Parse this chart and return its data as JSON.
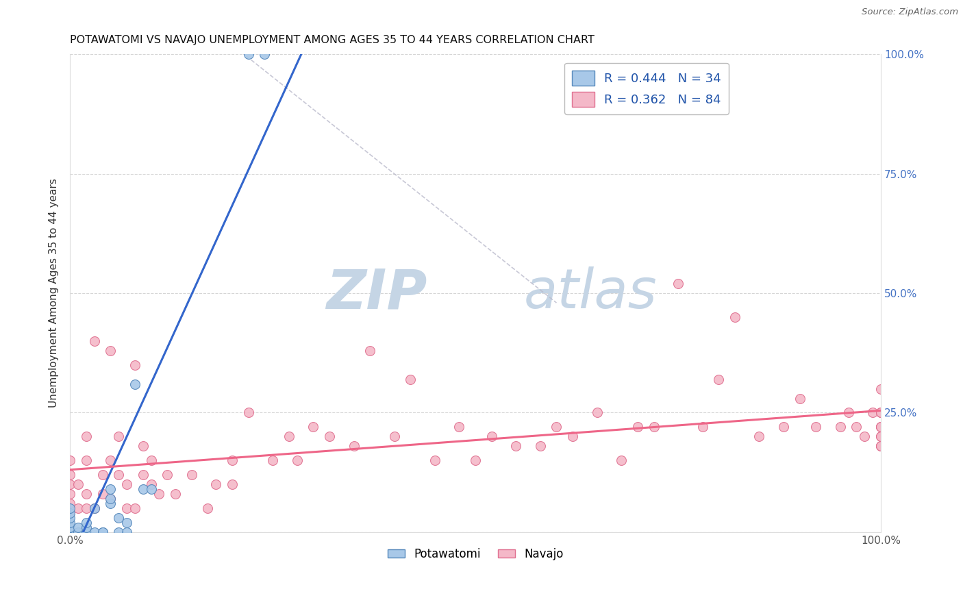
{
  "title": "POTAWATOMI VS NAVAJO UNEMPLOYMENT AMONG AGES 35 TO 44 YEARS CORRELATION CHART",
  "source": "Source: ZipAtlas.com",
  "ylabel": "Unemployment Among Ages 35 to 44 years",
  "xlim": [
    0,
    1.0
  ],
  "ylim": [
    0,
    1.0
  ],
  "xticks": [
    0.0,
    0.25,
    0.5,
    0.75,
    1.0
  ],
  "xticklabels": [
    "0.0%",
    "",
    "",
    "",
    "100.0%"
  ],
  "yticks_right": [
    0.0,
    0.25,
    0.5,
    0.75,
    1.0
  ],
  "yticklabels_right": [
    "",
    "25.0%",
    "50.0%",
    "75.0%",
    "100.0%"
  ],
  "potawatomi_color": "#a8c8e8",
  "navajo_color": "#f4b8c8",
  "potawatomi_edge": "#5588bb",
  "navajo_edge": "#e07090",
  "blue_line_color": "#3366cc",
  "pink_line_color": "#ee6688",
  "dashed_line_color": "#bbbbcc",
  "R_potawatomi": 0.444,
  "N_potawatomi": 34,
  "R_navajo": 0.362,
  "N_navajo": 84,
  "legend_label_potawatomi": "Potawatomi",
  "legend_label_navajo": "Navajo",
  "watermark_zip": "ZIP",
  "watermark_atlas": "atlas",
  "watermark_color_zip": "#c5d5e5",
  "watermark_color_atlas": "#c5d5e5",
  "potawatomi_x": [
    0.0,
    0.0,
    0.0,
    0.0,
    0.0,
    0.0,
    0.0,
    0.0,
    0.0,
    0.0,
    0.0,
    0.0,
    0.0,
    0.01,
    0.01,
    0.02,
    0.02,
    0.02,
    0.03,
    0.03,
    0.04,
    0.04,
    0.05,
    0.05,
    0.05,
    0.06,
    0.06,
    0.07,
    0.07,
    0.08,
    0.09,
    0.1,
    0.22,
    0.24
  ],
  "potawatomi_y": [
    0.0,
    0.0,
    0.0,
    0.0,
    0.0,
    0.0,
    0.0,
    0.01,
    0.01,
    0.02,
    0.03,
    0.04,
    0.05,
    0.0,
    0.01,
    0.0,
    0.01,
    0.02,
    0.0,
    0.05,
    0.0,
    0.0,
    0.06,
    0.07,
    0.09,
    0.0,
    0.03,
    0.0,
    0.02,
    0.31,
    0.09,
    0.09,
    1.0,
    1.0
  ],
  "navajo_x": [
    0.0,
    0.0,
    0.0,
    0.0,
    0.0,
    0.0,
    0.01,
    0.01,
    0.02,
    0.02,
    0.02,
    0.02,
    0.03,
    0.03,
    0.04,
    0.04,
    0.05,
    0.05,
    0.05,
    0.06,
    0.06,
    0.07,
    0.07,
    0.08,
    0.08,
    0.09,
    0.09,
    0.1,
    0.1,
    0.11,
    0.12,
    0.13,
    0.15,
    0.17,
    0.18,
    0.2,
    0.2,
    0.22,
    0.25,
    0.27,
    0.28,
    0.3,
    0.32,
    0.35,
    0.37,
    0.4,
    0.42,
    0.45,
    0.48,
    0.5,
    0.52,
    0.55,
    0.58,
    0.6,
    0.62,
    0.65,
    0.68,
    0.7,
    0.72,
    0.75,
    0.78,
    0.8,
    0.82,
    0.85,
    0.88,
    0.9,
    0.92,
    0.95,
    0.96,
    0.97,
    0.98,
    0.99,
    1.0,
    1.0,
    1.0,
    1.0,
    1.0,
    1.0,
    1.0,
    1.0,
    1.0,
    1.0,
    1.0,
    1.0
  ],
  "navajo_y": [
    0.04,
    0.06,
    0.08,
    0.1,
    0.12,
    0.15,
    0.05,
    0.1,
    0.05,
    0.08,
    0.15,
    0.2,
    0.05,
    0.4,
    0.08,
    0.12,
    0.07,
    0.15,
    0.38,
    0.12,
    0.2,
    0.05,
    0.1,
    0.05,
    0.35,
    0.12,
    0.18,
    0.1,
    0.15,
    0.08,
    0.12,
    0.08,
    0.12,
    0.05,
    0.1,
    0.1,
    0.15,
    0.25,
    0.15,
    0.2,
    0.15,
    0.22,
    0.2,
    0.18,
    0.38,
    0.2,
    0.32,
    0.15,
    0.22,
    0.15,
    0.2,
    0.18,
    0.18,
    0.22,
    0.2,
    0.25,
    0.15,
    0.22,
    0.22,
    0.52,
    0.22,
    0.32,
    0.45,
    0.2,
    0.22,
    0.28,
    0.22,
    0.22,
    0.25,
    0.22,
    0.2,
    0.25,
    0.22,
    0.22,
    0.2,
    0.18,
    0.18,
    0.18,
    0.25,
    0.2,
    0.25,
    0.3,
    0.22,
    0.25
  ]
}
